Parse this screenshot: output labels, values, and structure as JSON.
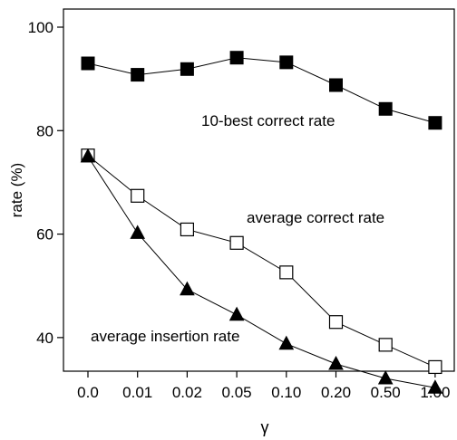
{
  "chart_data": {
    "type": "line",
    "title": "",
    "xlabel": "γ",
    "ylabel": "rate (%)",
    "categories": [
      "0.0",
      "0.01",
      "0.02",
      "0.05",
      "0.10",
      "0.20",
      "0.50",
      "1.00"
    ],
    "y_ticks": [
      "40",
      "60",
      "80",
      "100"
    ],
    "ylim": [
      33.5,
      103.5
    ],
    "grid": false,
    "legend": "none",
    "series": [
      {
        "name": "10-best correct rate",
        "marker": "filled-square",
        "values": [
          93.0,
          90.8,
          91.9,
          94.1,
          93.2,
          88.8,
          84.2,
          81.5
        ]
      },
      {
        "name": "average correct rate",
        "marker": "open-square",
        "values": [
          75.2,
          67.4,
          60.9,
          58.3,
          52.6,
          43.0,
          38.6,
          34.3
        ]
      },
      {
        "name": "average insertion rate",
        "marker": "filled-triangle",
        "values": [
          75.0,
          60.2,
          49.3,
          44.4,
          38.8,
          34.9,
          32.1,
          30.3
        ]
      }
    ],
    "annotations": [
      {
        "text": "10-best correct rate",
        "series": 0
      },
      {
        "text": "average correct rate",
        "series": 1
      },
      {
        "text": "average insertion rate",
        "series": 2
      }
    ],
    "colors": {
      "line": "#000000",
      "marker_fill": "#000000",
      "open_fill": "#ffffff"
    }
  }
}
